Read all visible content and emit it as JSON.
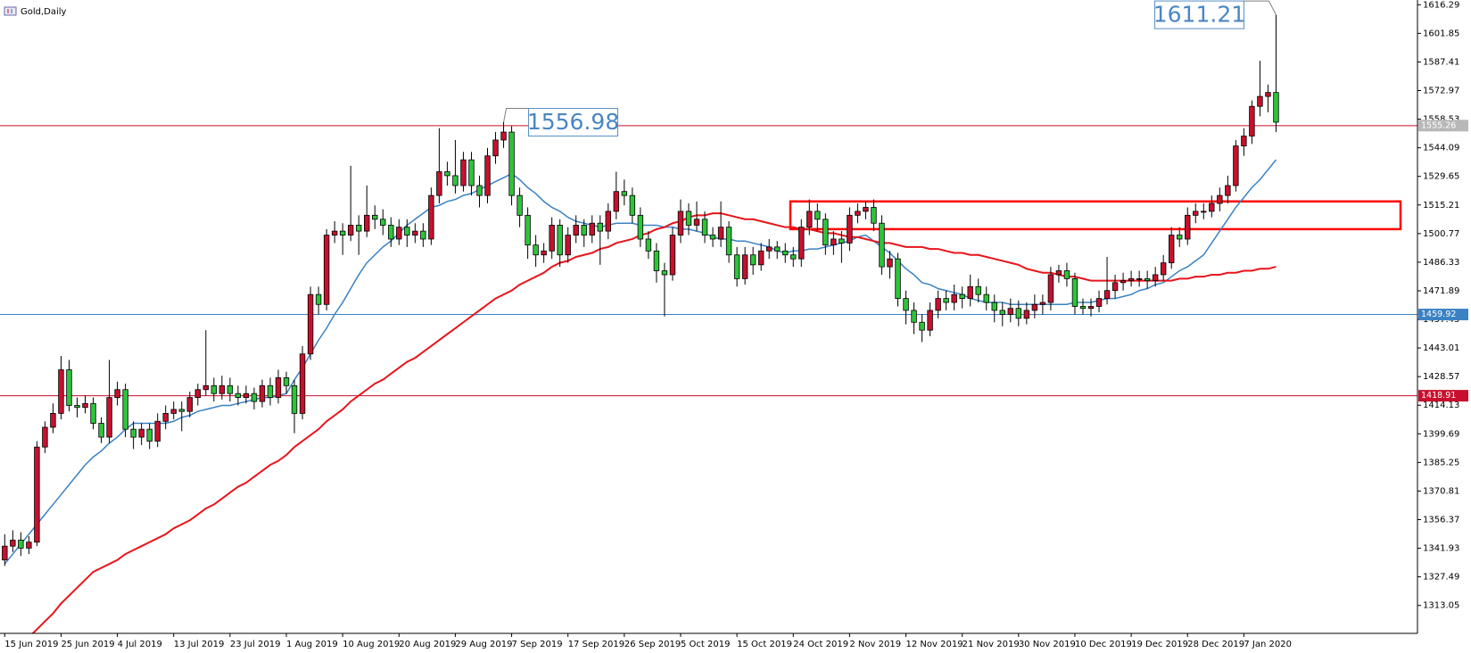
{
  "chart_data": {
    "type": "candlestick",
    "title": "Gold,Daily",
    "up_color": "#c8102e",
    "down_color": "#2ec43a",
    "ylim": [
      1298.95,
      1618.68
    ],
    "yticks": [
      1616.29,
      1601.85,
      1587.41,
      1572.97,
      1558.53,
      1544.09,
      1529.65,
      1515.21,
      1500.77,
      1486.33,
      1471.89,
      1457.45,
      1443.01,
      1428.57,
      1414.13,
      1399.69,
      1385.25,
      1370.81,
      1356.37,
      1341.93,
      1327.49,
      1313.05
    ],
    "categories": [
      "15 Jun 2019",
      null,
      null,
      null,
      null,
      null,
      null,
      "25 Jun 2019",
      null,
      null,
      null,
      null,
      null,
      null,
      "4 Jul 2019",
      null,
      null,
      null,
      null,
      null,
      null,
      "13 Jul 2019",
      null,
      null,
      null,
      null,
      null,
      null,
      "23 Jul 2019",
      null,
      null,
      null,
      null,
      null,
      null,
      "1 Aug 2019",
      null,
      null,
      null,
      null,
      null,
      null,
      "10 Aug 2019",
      null,
      null,
      null,
      null,
      null,
      null,
      "20 Aug 2019",
      null,
      null,
      null,
      null,
      null,
      null,
      "29 Aug 2019",
      null,
      null,
      null,
      null,
      null,
      null,
      "7 Sep 2019",
      null,
      null,
      null,
      null,
      null,
      null,
      "17 Sep 2019",
      null,
      null,
      null,
      null,
      null,
      null,
      "26 Sep 2019",
      null,
      null,
      null,
      null,
      null,
      null,
      "5 Oct 2019",
      null,
      null,
      null,
      null,
      null,
      null,
      "15 Oct 2019",
      null,
      null,
      null,
      null,
      null,
      null,
      "24 Oct 2019",
      null,
      null,
      null,
      null,
      null,
      null,
      "2 Nov 2019",
      null,
      null,
      null,
      null,
      null,
      null,
      "12 Nov 2019",
      null,
      null,
      null,
      null,
      null,
      null,
      "21 Nov 2019",
      null,
      null,
      null,
      null,
      null,
      null,
      "30 Nov 2019",
      null,
      null,
      null,
      null,
      null,
      null,
      "10 Dec 2019",
      null,
      null,
      null,
      null,
      null,
      null,
      "19 Dec 2019",
      null,
      null,
      null,
      null,
      null,
      null,
      "28 Dec 2019",
      null,
      null,
      null,
      null,
      null,
      null,
      "7 Jan 2020",
      null,
      null,
      null,
      null
    ],
    "ohlc": [
      [
        1336,
        1349,
        1333,
        1343
      ],
      [
        1343,
        1351,
        1340,
        1346
      ],
      [
        1346,
        1350,
        1338,
        1342
      ],
      [
        1342,
        1348,
        1339,
        1345
      ],
      [
        1345,
        1396,
        1343,
        1393
      ],
      [
        1393,
        1406,
        1390,
        1403
      ],
      [
        1403,
        1415,
        1400,
        1410
      ],
      [
        1410,
        1439,
        1407,
        1432
      ],
      [
        1432,
        1437,
        1411,
        1414
      ],
      [
        1414,
        1418,
        1408,
        1413
      ],
      [
        1413,
        1419,
        1410,
        1415
      ],
      [
        1415,
        1418,
        1402,
        1405
      ],
      [
        1405,
        1408,
        1395,
        1398
      ],
      [
        1398,
        1437,
        1395,
        1418
      ],
      [
        1418,
        1426,
        1414,
        1422
      ],
      [
        1422,
        1425,
        1398,
        1402
      ],
      [
        1402,
        1406,
        1392,
        1398
      ],
      [
        1398,
        1405,
        1394,
        1402
      ],
      [
        1402,
        1405,
        1392,
        1396
      ],
      [
        1396,
        1410,
        1393,
        1406
      ],
      [
        1406,
        1414,
        1402,
        1410
      ],
      [
        1410,
        1416,
        1407,
        1412
      ],
      [
        1412,
        1416,
        1401,
        1411
      ],
      [
        1411,
        1421,
        1408,
        1418
      ],
      [
        1418,
        1425,
        1414,
        1422
      ],
      [
        1422,
        1452,
        1419,
        1424
      ],
      [
        1424,
        1428,
        1416,
        1420
      ],
      [
        1420,
        1429,
        1417,
        1424
      ],
      [
        1424,
        1428,
        1416,
        1420
      ],
      [
        1420,
        1424,
        1414,
        1418
      ],
      [
        1418,
        1424,
        1415,
        1420
      ],
      [
        1420,
        1423,
        1412,
        1416
      ],
      [
        1416,
        1427,
        1413,
        1424
      ],
      [
        1424,
        1428,
        1414,
        1418
      ],
      [
        1418,
        1432,
        1415,
        1428
      ],
      [
        1428,
        1431,
        1420,
        1424
      ],
      [
        1424,
        1427,
        1400,
        1410
      ],
      [
        1410,
        1444,
        1407,
        1440
      ],
      [
        1440,
        1474,
        1437,
        1470
      ],
      [
        1470,
        1474,
        1460,
        1465
      ],
      [
        1465,
        1503,
        1462,
        1500
      ],
      [
        1500,
        1507,
        1496,
        1502
      ],
      [
        1502,
        1506,
        1490,
        1500
      ],
      [
        1500,
        1535,
        1497,
        1505
      ],
      [
        1505,
        1510,
        1490,
        1502
      ],
      [
        1502,
        1525,
        1499,
        1510
      ],
      [
        1510,
        1515,
        1503,
        1508
      ],
      [
        1508,
        1513,
        1500,
        1505
      ],
      [
        1505,
        1509,
        1494,
        1498
      ],
      [
        1498,
        1508,
        1495,
        1504
      ],
      [
        1504,
        1508,
        1494,
        1500
      ],
      [
        1500,
        1506,
        1496,
        1502
      ],
      [
        1502,
        1506,
        1494,
        1498
      ],
      [
        1498,
        1524,
        1495,
        1520
      ],
      [
        1520,
        1554,
        1516,
        1532
      ],
      [
        1532,
        1537,
        1525,
        1530
      ],
      [
        1530,
        1548,
        1521,
        1525
      ],
      [
        1525,
        1542,
        1522,
        1538
      ],
      [
        1538,
        1542,
        1520,
        1525
      ],
      [
        1525,
        1530,
        1514,
        1520
      ],
      [
        1520,
        1544,
        1516,
        1540
      ],
      [
        1540,
        1552,
        1536,
        1548
      ],
      [
        1548,
        1556.98,
        1544,
        1552
      ],
      [
        1552,
        1555,
        1515,
        1520
      ],
      [
        1520,
        1524,
        1504,
        1510
      ],
      [
        1510,
        1514,
        1488,
        1495
      ],
      [
        1495,
        1500,
        1484,
        1490
      ],
      [
        1490,
        1496,
        1486,
        1492
      ],
      [
        1492,
        1509,
        1488,
        1505
      ],
      [
        1505,
        1508,
        1484,
        1490
      ],
      [
        1490,
        1504,
        1486,
        1500
      ],
      [
        1500,
        1510,
        1496,
        1505
      ],
      [
        1505,
        1508,
        1494,
        1500
      ],
      [
        1500,
        1510,
        1496,
        1506
      ],
      [
        1506,
        1510,
        1485,
        1502
      ],
      [
        1502,
        1516,
        1498,
        1512
      ],
      [
        1512,
        1532,
        1508,
        1522
      ],
      [
        1522,
        1528,
        1515,
        1520
      ],
      [
        1520,
        1524,
        1506,
        1510
      ],
      [
        1510,
        1514,
        1494,
        1498
      ],
      [
        1498,
        1502,
        1488,
        1492
      ],
      [
        1492,
        1496,
        1476,
        1482
      ],
      [
        1482,
        1486,
        1459,
        1480
      ],
      [
        1480,
        1504,
        1477,
        1500
      ],
      [
        1500,
        1518,
        1496,
        1512
      ],
      [
        1512,
        1516,
        1500,
        1505
      ],
      [
        1505,
        1517,
        1502,
        1508
      ],
      [
        1508,
        1512,
        1496,
        1500
      ],
      [
        1500,
        1504,
        1494,
        1498
      ],
      [
        1498,
        1517,
        1494,
        1504
      ],
      [
        1504,
        1507,
        1486,
        1490
      ],
      [
        1490,
        1494,
        1474,
        1478
      ],
      [
        1478,
        1494,
        1475,
        1490
      ],
      [
        1490,
        1494,
        1480,
        1485
      ],
      [
        1485,
        1496,
        1482,
        1492
      ],
      [
        1492,
        1498,
        1488,
        1494
      ],
      [
        1494,
        1497,
        1488,
        1492
      ],
      [
        1492,
        1496,
        1486,
        1490
      ],
      [
        1490,
        1494,
        1484,
        1488
      ],
      [
        1488,
        1508,
        1484,
        1504
      ],
      [
        1504,
        1518,
        1500,
        1512
      ],
      [
        1512,
        1516,
        1502,
        1508
      ],
      [
        1508,
        1511,
        1490,
        1495
      ],
      [
        1495,
        1502,
        1490,
        1498
      ],
      [
        1498,
        1502,
        1486,
        1496
      ],
      [
        1496,
        1514,
        1492,
        1510
      ],
      [
        1510,
        1516,
        1506,
        1512
      ],
      [
        1512,
        1517,
        1508,
        1514
      ],
      [
        1514,
        1518,
        1502,
        1506
      ],
      [
        1506,
        1510,
        1480,
        1484
      ],
      [
        1484,
        1492,
        1478,
        1488
      ],
      [
        1488,
        1491,
        1464,
        1468
      ],
      [
        1468,
        1472,
        1455,
        1462
      ],
      [
        1462,
        1466,
        1450,
        1456
      ],
      [
        1456,
        1460,
        1446,
        1452
      ],
      [
        1452,
        1466,
        1449,
        1462
      ],
      [
        1462,
        1472,
        1458,
        1468
      ],
      [
        1468,
        1472,
        1462,
        1466
      ],
      [
        1466,
        1475,
        1462,
        1470
      ],
      [
        1470,
        1474,
        1463,
        1468
      ],
      [
        1468,
        1480,
        1464,
        1474
      ],
      [
        1474,
        1478,
        1466,
        1470
      ],
      [
        1470,
        1474,
        1462,
        1466
      ],
      [
        1466,
        1470,
        1456,
        1462
      ],
      [
        1462,
        1466,
        1454,
        1460
      ],
      [
        1460,
        1468,
        1456,
        1463
      ],
      [
        1463,
        1467,
        1454,
        1458
      ],
      [
        1458,
        1466,
        1455,
        1462
      ],
      [
        1462,
        1470,
        1458,
        1465
      ],
      [
        1465,
        1470,
        1460,
        1466
      ],
      [
        1466,
        1484,
        1462,
        1480
      ],
      [
        1480,
        1485,
        1476,
        1482
      ],
      [
        1482,
        1486,
        1474,
        1478
      ],
      [
        1478,
        1481,
        1460,
        1464
      ],
      [
        1464,
        1468,
        1460,
        1463
      ],
      [
        1463,
        1468,
        1459,
        1464
      ],
      [
        1464,
        1472,
        1461,
        1468
      ],
      [
        1468,
        1489,
        1465,
        1472
      ],
      [
        1472,
        1480,
        1468,
        1476
      ],
      [
        1476,
        1481,
        1472,
        1477
      ],
      [
        1477,
        1482,
        1474,
        1478
      ],
      [
        1478,
        1482,
        1474,
        1478
      ],
      [
        1478,
        1482,
        1473,
        1477
      ],
      [
        1477,
        1484,
        1474,
        1480
      ],
      [
        1480,
        1490,
        1477,
        1486
      ],
      [
        1486,
        1504,
        1483,
        1500
      ],
      [
        1500,
        1504,
        1494,
        1498
      ],
      [
        1498,
        1514,
        1495,
        1510
      ],
      [
        1510,
        1516,
        1506,
        1512
      ],
      [
        1512,
        1516,
        1508,
        1512
      ],
      [
        1512,
        1520,
        1509,
        1516
      ],
      [
        1516,
        1524,
        1512,
        1520
      ],
      [
        1520,
        1530,
        1516,
        1525
      ],
      [
        1525,
        1548,
        1522,
        1545
      ],
      [
        1545,
        1554,
        1540,
        1550
      ],
      [
        1550,
        1568,
        1546,
        1565
      ],
      [
        1565,
        1588,
        1560,
        1570
      ],
      [
        1570,
        1576,
        1562,
        1572
      ],
      [
        1572,
        1611.21,
        1552,
        1557
      ]
    ],
    "lines": [
      {
        "color": "#3b82c4",
        "values": [
          1334,
          1339,
          1344,
          1349,
          1354,
          1359,
          1364,
          1369,
          1374,
          1379,
          1384,
          1388,
          1391,
          1395,
          1398,
          1402,
          1405,
          1405,
          1405,
          1405,
          1405,
          1406,
          1408,
          1409,
          1411,
          1412,
          1413,
          1414,
          1414,
          1415,
          1416,
          1417,
          1418,
          1418,
          1419,
          1420,
          1427,
          1433,
          1440,
          1447,
          1453,
          1460,
          1466,
          1473,
          1480,
          1486,
          1490,
          1494,
          1497,
          1501,
          1505,
          1508,
          1511,
          1514,
          1515,
          1517,
          1518,
          1520,
          1521,
          1523,
          1525,
          1527,
          1529,
          1531,
          1528,
          1524,
          1521,
          1517,
          1514,
          1512,
          1509,
          1507,
          1506,
          1505,
          1504,
          1505,
          1506,
          1506,
          1506,
          1505,
          1505,
          1505,
          1504,
          1504,
          1503,
          1503,
          1502,
          1501,
          1499,
          1498,
          1498,
          1497,
          1497,
          1496,
          1495,
          1494,
          1492,
          1491,
          1492,
          1492,
          1493,
          1493,
          1494,
          1495,
          1496,
          1497,
          1499,
          1500,
          1497,
          1494,
          1491,
          1487,
          1483,
          1480,
          1476,
          1475,
          1473,
          1472,
          1471,
          1470,
          1468,
          1467,
          1466,
          1466,
          1466,
          1465,
          1465,
          1465,
          1465,
          1465,
          1465,
          1465,
          1465,
          1466,
          1466,
          1466,
          1467,
          1468,
          1468,
          1469,
          1470,
          1472,
          1473,
          1475,
          1476,
          1479,
          1482,
          1484,
          1487,
          1490,
          1496,
          1502,
          1508,
          1514,
          1519,
          1524,
          1528,
          1533,
          1538
        ]
      },
      {
        "color": "#e8141b",
        "values": [
          null,
          null,
          null,
          1297,
          1301,
          1305,
          1309,
          1314,
          1318,
          1322,
          1326,
          1330,
          1332,
          1334,
          1336,
          1339,
          1341,
          1343,
          1345,
          1347,
          1349,
          1352,
          1354,
          1356,
          1359,
          1362,
          1364,
          1367,
          1370,
          1373,
          1375,
          1378,
          1381,
          1384,
          1386,
          1389,
          1393,
          1396,
          1399,
          1402,
          1406,
          1409,
          1412,
          1416,
          1419,
          1422,
          1425,
          1427,
          1430,
          1433,
          1436,
          1438,
          1441,
          1444,
          1447,
          1450,
          1453,
          1456,
          1459,
          1462,
          1465,
          1468,
          1470,
          1472,
          1475,
          1477,
          1479,
          1481,
          1484,
          1486,
          1487,
          1489,
          1490,
          1491,
          1493,
          1494,
          1496,
          1497,
          1498,
          1500,
          1501,
          1503,
          1504,
          1506,
          1507,
          1509,
          1510,
          1510,
          1511,
          1511,
          1510,
          1509,
          1508,
          1508,
          1507,
          1506,
          1505,
          1504,
          1504,
          1503,
          1503,
          1502,
          1501,
          1501,
          1500,
          1499,
          1499,
          1498,
          1497,
          1496,
          1496,
          1495,
          1494,
          1494,
          1494,
          1493,
          1493,
          1492,
          1491,
          1491,
          1490,
          1490,
          1489,
          1488,
          1487,
          1486,
          1485,
          1483,
          1482,
          1481,
          1481,
          1480,
          1479,
          1479,
          1478,
          1477,
          1477,
          1477,
          1477,
          1477,
          1477,
          1477,
          1477,
          1477,
          1477,
          1477,
          1478,
          1478,
          1479,
          1479,
          1480,
          1480,
          1481,
          1481,
          1482,
          1482,
          1483,
          1483,
          1484
        ]
      }
    ],
    "hlines": [
      {
        "value": 1555.26,
        "color": "#c8102e",
        "label_bg": "#b8b8b8"
      },
      {
        "value": 1459.92,
        "color": "#3b82c4",
        "label_bg": "#3b82c4"
      },
      {
        "value": 1418.91,
        "color": "#c8102e",
        "label_bg": "#c8102e"
      }
    ],
    "annotations": [
      {
        "value": 1611.21
      },
      {
        "value": 1556.98
      }
    ],
    "zone": {
      "from": 1503,
      "to": 1517,
      "color": "#ff0000"
    }
  }
}
